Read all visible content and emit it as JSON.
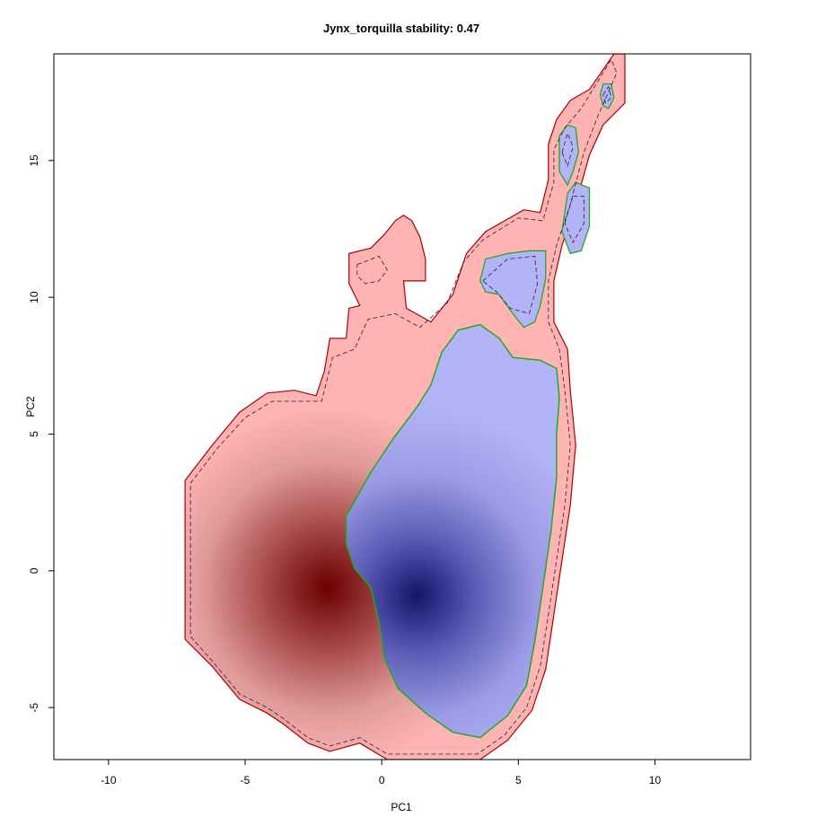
{
  "chart_data": {
    "type": "heatmap",
    "title": "Jynx_torquilla stability: 0.47",
    "xlabel": "PC1",
    "ylabel": "PC2",
    "xlim": [
      -12,
      13.5
    ],
    "ylim": [
      -6.9,
      18.9
    ],
    "x_ticks": [
      -10,
      -5,
      0,
      5,
      10
    ],
    "y_ticks": [
      -5,
      0,
      5,
      10,
      15
    ],
    "grid": false,
    "legend": "none",
    "series": [
      {
        "fill_color": "#ffb3b3",
        "density_color": "#7a0000",
        "density_peak": [
          -2.0,
          -0.6
        ],
        "outline": [
          [
            -7.2,
            3.3
          ],
          [
            -6.2,
            4.6
          ],
          [
            -5.2,
            5.8
          ],
          [
            -4.2,
            6.5
          ],
          [
            -3.2,
            6.6
          ],
          [
            -2.4,
            6.4
          ],
          [
            -2.1,
            7.3
          ],
          [
            -1.9,
            8.5
          ],
          [
            -1.3,
            8.5
          ],
          [
            -1.2,
            9.6
          ],
          [
            -0.8,
            9.7
          ],
          [
            -1.2,
            10.5
          ],
          [
            -1.2,
            11.6
          ],
          [
            -0.4,
            11.8
          ],
          [
            0.1,
            12.3
          ],
          [
            0.5,
            12.8
          ],
          [
            0.8,
            13.0
          ],
          [
            1.1,
            12.8
          ],
          [
            1.4,
            12.2
          ],
          [
            1.6,
            11.4
          ],
          [
            1.6,
            10.6
          ],
          [
            1.2,
            10.6
          ],
          [
            0.8,
            10.6
          ],
          [
            0.9,
            9.6
          ],
          [
            1.8,
            9.1
          ],
          [
            2.6,
            10.1
          ],
          [
            3.1,
            11.6
          ],
          [
            3.8,
            12.4
          ],
          [
            5.2,
            13.2
          ],
          [
            5.8,
            13.1
          ],
          [
            6.1,
            14.3
          ],
          [
            6.1,
            15.6
          ],
          [
            6.4,
            16.5
          ],
          [
            6.9,
            17.2
          ],
          [
            7.6,
            17.6
          ],
          [
            8.5,
            18.9
          ],
          [
            8.9,
            18.9
          ],
          [
            8.9,
            17.1
          ],
          [
            8.1,
            16.3
          ],
          [
            7.6,
            15.2
          ],
          [
            7.1,
            13.4
          ],
          [
            6.6,
            11.9
          ],
          [
            6.3,
            10.6
          ],
          [
            6.3,
            9.1
          ],
          [
            6.8,
            8.1
          ],
          [
            6.9,
            6.6
          ],
          [
            7.1,
            4.6
          ],
          [
            6.9,
            2.4
          ],
          [
            6.6,
            0.4
          ],
          [
            6.3,
            -1.6
          ],
          [
            6.0,
            -3.6
          ],
          [
            5.5,
            -5.1
          ],
          [
            4.6,
            -6.2
          ],
          [
            3.6,
            -6.9
          ],
          [
            0.2,
            -6.9
          ],
          [
            -0.8,
            -6.3
          ],
          [
            -1.9,
            -6.6
          ],
          [
            -2.7,
            -6.3
          ],
          [
            -3.6,
            -5.6
          ],
          [
            -4.2,
            -5.2
          ],
          [
            -5.2,
            -4.7
          ],
          [
            -6.2,
            -3.5
          ],
          [
            -7.2,
            -2.5
          ]
        ]
      },
      {
        "fill_color": "#b3b3f7",
        "density_color": "#1a1a6e",
        "density_peak": [
          1.3,
          -0.9
        ],
        "outline": [
          [
            -1.3,
            2.0
          ],
          [
            -0.4,
            3.6
          ],
          [
            0.4,
            4.8
          ],
          [
            1.3,
            6.0
          ],
          [
            1.8,
            6.8
          ],
          [
            2.2,
            8.0
          ],
          [
            2.8,
            8.8
          ],
          [
            3.6,
            9.0
          ],
          [
            4.3,
            8.5
          ],
          [
            4.8,
            7.8
          ],
          [
            5.8,
            7.7
          ],
          [
            6.4,
            7.4
          ],
          [
            6.5,
            6.3
          ],
          [
            6.4,
            5.0
          ],
          [
            6.4,
            3.4
          ],
          [
            6.2,
            1.5
          ],
          [
            5.9,
            -0.6
          ],
          [
            5.6,
            -2.6
          ],
          [
            5.3,
            -4.2
          ],
          [
            4.6,
            -5.3
          ],
          [
            3.6,
            -6.1
          ],
          [
            2.6,
            -5.9
          ],
          [
            1.6,
            -5.2
          ],
          [
            0.6,
            -4.3
          ],
          [
            0.1,
            -3.2
          ],
          [
            -0.1,
            -1.9
          ],
          [
            -0.4,
            -0.6
          ],
          [
            -1.0,
            0.1
          ],
          [
            -1.3,
            1.0
          ]
        ]
      }
    ],
    "islands": [
      [
        [
          3.6,
          10.6
        ],
        [
          3.8,
          11.4
        ],
        [
          4.6,
          11.6
        ],
        [
          5.4,
          11.7
        ],
        [
          6.0,
          11.7
        ],
        [
          6.0,
          10.7
        ],
        [
          5.8,
          9.7
        ],
        [
          5.6,
          9.1
        ],
        [
          5.2,
          8.9
        ],
        [
          4.8,
          9.4
        ],
        [
          4.3,
          10.1
        ],
        [
          3.8,
          10.2
        ]
      ],
      [
        [
          6.5,
          14.6
        ],
        [
          6.5,
          15.9
        ],
        [
          6.8,
          16.3
        ],
        [
          7.1,
          16.2
        ],
        [
          7.2,
          15.3
        ],
        [
          7.0,
          14.6
        ],
        [
          6.8,
          14.1
        ]
      ],
      [
        [
          6.6,
          12.4
        ],
        [
          6.8,
          13.8
        ],
        [
          7.1,
          14.2
        ],
        [
          7.6,
          14.0
        ],
        [
          7.6,
          12.6
        ],
        [
          7.3,
          11.7
        ],
        [
          6.9,
          11.6
        ]
      ],
      [
        [
          8.0,
          17.4
        ],
        [
          8.1,
          17.8
        ],
        [
          8.4,
          17.8
        ],
        [
          8.5,
          17.3
        ],
        [
          8.3,
          16.9
        ],
        [
          8.1,
          17.0
        ]
      ]
    ],
    "dashed_contours": [
      [
        [
          -7.0,
          3.2
        ],
        [
          -6.0,
          4.5
        ],
        [
          -5.0,
          5.6
        ],
        [
          -4.0,
          6.2
        ],
        [
          -2.2,
          6.2
        ],
        [
          -1.8,
          7.8
        ],
        [
          -1.0,
          8.1
        ],
        [
          -0.5,
          9.2
        ],
        [
          0.5,
          9.4
        ],
        [
          1.4,
          8.9
        ],
        [
          2.4,
          9.8
        ],
        [
          3.0,
          11.3
        ],
        [
          3.7,
          12.1
        ],
        [
          5.0,
          12.9
        ],
        [
          5.9,
          12.8
        ],
        [
          6.3,
          14.2
        ],
        [
          6.3,
          15.4
        ],
        [
          6.7,
          16.2
        ],
        [
          7.3,
          16.9
        ],
        [
          8.4,
          18.7
        ],
        [
          8.6,
          18.2
        ],
        [
          7.9,
          16.6
        ],
        [
          7.4,
          15.3
        ],
        [
          6.9,
          13.4
        ],
        [
          6.4,
          11.9
        ],
        [
          6.1,
          10.6
        ],
        [
          6.1,
          9.1
        ],
        [
          6.5,
          8.1
        ],
        [
          6.7,
          6.6
        ],
        [
          6.9,
          4.6
        ],
        [
          6.7,
          2.4
        ],
        [
          6.4,
          0.4
        ],
        [
          6.1,
          -1.6
        ],
        [
          5.8,
          -3.5
        ],
        [
          5.3,
          -5.0
        ],
        [
          4.5,
          -6.0
        ],
        [
          3.5,
          -6.7
        ],
        [
          0.2,
          -6.7
        ],
        [
          -0.8,
          -6.1
        ],
        [
          -1.9,
          -6.4
        ],
        [
          -2.7,
          -6.1
        ],
        [
          -3.6,
          -5.4
        ],
        [
          -4.2,
          -5.0
        ],
        [
          -5.2,
          -4.5
        ],
        [
          -6.2,
          -3.3
        ],
        [
          -7.0,
          -2.4
        ]
      ],
      [
        [
          -0.9,
          11.2
        ],
        [
          -0.1,
          11.5
        ],
        [
          0.2,
          11.0
        ],
        [
          -0.1,
          10.6
        ],
        [
          -0.6,
          10.5
        ],
        [
          -0.9,
          10.8
        ],
        [
          -0.9,
          11.2
        ]
      ],
      [
        [
          3.7,
          10.6
        ],
        [
          4.6,
          11.4
        ],
        [
          5.6,
          11.5
        ],
        [
          5.7,
          10.5
        ],
        [
          5.4,
          9.4
        ],
        [
          4.7,
          9.6
        ],
        [
          4.2,
          10.2
        ],
        [
          3.7,
          10.6
        ]
      ],
      [
        [
          6.6,
          15.3
        ],
        [
          6.8,
          16.0
        ],
        [
          7.0,
          15.5
        ],
        [
          6.8,
          14.8
        ],
        [
          6.6,
          15.3
        ]
      ],
      [
        [
          6.7,
          12.7
        ],
        [
          7.0,
          13.7
        ],
        [
          7.4,
          13.7
        ],
        [
          7.4,
          12.7
        ],
        [
          7.0,
          12.0
        ],
        [
          6.7,
          12.7
        ]
      ],
      [
        [
          8.1,
          17.4
        ],
        [
          8.3,
          17.7
        ],
        [
          8.4,
          17.3
        ],
        [
          8.2,
          17.1
        ],
        [
          8.1,
          17.4
        ]
      ]
    ]
  }
}
